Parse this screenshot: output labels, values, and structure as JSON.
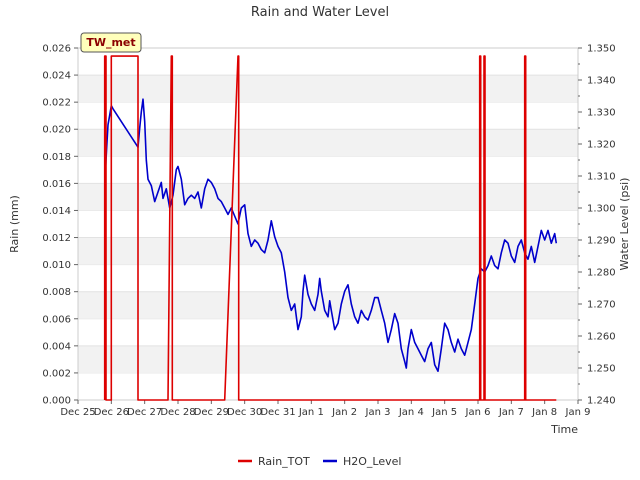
{
  "chart_data": {
    "type": "line",
    "title": "Rain and Water Level",
    "badge": "TW_met",
    "xlabel": "Time",
    "ylabel_left": "Rain (mm)",
    "ylabel_right": "Water Level (psi)",
    "xlim": [
      0,
      15
    ],
    "x_ticks": [
      {
        "x": 0,
        "label": "Dec 25"
      },
      {
        "x": 1,
        "label": "Dec 26"
      },
      {
        "x": 2,
        "label": "Dec 27"
      },
      {
        "x": 3,
        "label": "Dec 28"
      },
      {
        "x": 4,
        "label": "Dec 29"
      },
      {
        "x": 5,
        "label": "Dec 30"
      },
      {
        "x": 6,
        "label": "Dec 31"
      },
      {
        "x": 7,
        "label": "Jan 1"
      },
      {
        "x": 8,
        "label": "Jan 2"
      },
      {
        "x": 9,
        "label": "Jan 3"
      },
      {
        "x": 10,
        "label": "Jan 4"
      },
      {
        "x": 11,
        "label": "Jan 5"
      },
      {
        "x": 12,
        "label": "Jan 6"
      },
      {
        "x": 13,
        "label": "Jan 7"
      },
      {
        "x": 14,
        "label": "Jan 8"
      },
      {
        "x": 15,
        "label": "Jan 9"
      }
    ],
    "ylim_left": [
      0,
      0.026
    ],
    "y_ticks_left": [
      "0.000",
      "0.002",
      "0.004",
      "0.006",
      "0.008",
      "0.010",
      "0.012",
      "0.014",
      "0.016",
      "0.018",
      "0.020",
      "0.022",
      "0.024",
      "0.026"
    ],
    "ylim_right": [
      1.24,
      1.35
    ],
    "y_ticks_right": [
      "1.240",
      "1.250",
      "1.260",
      "1.270",
      "1.280",
      "1.290",
      "1.300",
      "1.310",
      "1.320",
      "1.330",
      "1.340",
      "1.350"
    ],
    "grid": "horizontal bands",
    "legend_position": "bottom",
    "series": [
      {
        "name": "Rain_TOT",
        "color": "#dd0000",
        "axis": "left",
        "points": [
          [
            0.8,
            0
          ],
          [
            0.8,
            0.0254
          ],
          [
            0.84,
            0.0254
          ],
          [
            0.84,
            0
          ],
          [
            1.0,
            0
          ],
          [
            1.0,
            0.0254
          ],
          [
            1.8,
            0.0254
          ],
          [
            1.8,
            0
          ],
          [
            2.7,
            0
          ],
          [
            2.8,
            0.0254
          ],
          [
            2.83,
            0.0254
          ],
          [
            2.83,
            0
          ],
          [
            4.4,
            0
          ],
          [
            4.8,
            0.0254
          ],
          [
            4.82,
            0.0254
          ],
          [
            4.82,
            0
          ],
          [
            12.05,
            0
          ],
          [
            12.05,
            0.0254
          ],
          [
            12.08,
            0.0254
          ],
          [
            12.08,
            0
          ],
          [
            12.18,
            0
          ],
          [
            12.18,
            0.0254
          ],
          [
            12.21,
            0.0254
          ],
          [
            12.21,
            0
          ],
          [
            13.4,
            0
          ],
          [
            13.4,
            0.0254
          ],
          [
            13.43,
            0.0254
          ],
          [
            13.43,
            0
          ],
          [
            14.35,
            0
          ]
        ]
      },
      {
        "name": "H2O_Level",
        "color": "#0000cc",
        "axis": "right",
        "points": [
          [
            0.82,
            1.311
          ],
          [
            0.86,
            1.319
          ],
          [
            0.9,
            1.326
          ],
          [
            0.95,
            1.329
          ],
          [
            1.0,
            1.332
          ],
          [
            1.05,
            1.331
          ],
          [
            1.8,
            1.319
          ],
          [
            1.85,
            1.325
          ],
          [
            1.9,
            1.33
          ],
          [
            1.95,
            1.334
          ],
          [
            2.0,
            1.327
          ],
          [
            2.05,
            1.315
          ],
          [
            2.1,
            1.309
          ],
          [
            2.2,
            1.307
          ],
          [
            2.3,
            1.302
          ],
          [
            2.4,
            1.305
          ],
          [
            2.5,
            1.308
          ],
          [
            2.55,
            1.303
          ],
          [
            2.65,
            1.306
          ],
          [
            2.75,
            1.3
          ],
          [
            2.85,
            1.304
          ],
          [
            2.95,
            1.312
          ],
          [
            3.0,
            1.313
          ],
          [
            3.1,
            1.309
          ],
          [
            3.2,
            1.301
          ],
          [
            3.3,
            1.303
          ],
          [
            3.4,
            1.304
          ],
          [
            3.5,
            1.303
          ],
          [
            3.6,
            1.305
          ],
          [
            3.7,
            1.3
          ],
          [
            3.8,
            1.306
          ],
          [
            3.9,
            1.309
          ],
          [
            4.0,
            1.308
          ],
          [
            4.1,
            1.306
          ],
          [
            4.2,
            1.303
          ],
          [
            4.3,
            1.302
          ],
          [
            4.4,
            1.3
          ],
          [
            4.5,
            1.298
          ],
          [
            4.6,
            1.3
          ],
          [
            4.8,
            1.295
          ],
          [
            4.9,
            1.3
          ],
          [
            5.0,
            1.301
          ],
          [
            5.1,
            1.292
          ],
          [
            5.2,
            1.288
          ],
          [
            5.3,
            1.29
          ],
          [
            5.4,
            1.289
          ],
          [
            5.5,
            1.287
          ],
          [
            5.6,
            1.286
          ],
          [
            5.7,
            1.29
          ],
          [
            5.8,
            1.296
          ],
          [
            5.9,
            1.291
          ],
          [
            6.0,
            1.288
          ],
          [
            6.1,
            1.286
          ],
          [
            6.2,
            1.28
          ],
          [
            6.3,
            1.272
          ],
          [
            6.4,
            1.268
          ],
          [
            6.5,
            1.27
          ],
          [
            6.6,
            1.262
          ],
          [
            6.7,
            1.266
          ],
          [
            6.75,
            1.274
          ],
          [
            6.8,
            1.279
          ],
          [
            6.9,
            1.273
          ],
          [
            7.0,
            1.27
          ],
          [
            7.1,
            1.268
          ],
          [
            7.2,
            1.273
          ],
          [
            7.25,
            1.278
          ],
          [
            7.3,
            1.274
          ],
          [
            7.4,
            1.268
          ],
          [
            7.5,
            1.266
          ],
          [
            7.55,
            1.271
          ],
          [
            7.6,
            1.268
          ],
          [
            7.7,
            1.262
          ],
          [
            7.8,
            1.264
          ],
          [
            7.9,
            1.27
          ],
          [
            8.0,
            1.274
          ],
          [
            8.1,
            1.276
          ],
          [
            8.2,
            1.27
          ],
          [
            8.3,
            1.266
          ],
          [
            8.4,
            1.264
          ],
          [
            8.5,
            1.268
          ],
          [
            8.6,
            1.266
          ],
          [
            8.7,
            1.265
          ],
          [
            8.8,
            1.268
          ],
          [
            8.9,
            1.272
          ],
          [
            9.0,
            1.272
          ],
          [
            9.1,
            1.268
          ],
          [
            9.2,
            1.264
          ],
          [
            9.3,
            1.258
          ],
          [
            9.4,
            1.262
          ],
          [
            9.5,
            1.267
          ],
          [
            9.6,
            1.264
          ],
          [
            9.7,
            1.256
          ],
          [
            9.8,
            1.252
          ],
          [
            9.85,
            1.25
          ],
          [
            9.9,
            1.256
          ],
          [
            10.0,
            1.262
          ],
          [
            10.1,
            1.258
          ],
          [
            10.2,
            1.256
          ],
          [
            10.3,
            1.254
          ],
          [
            10.4,
            1.252
          ],
          [
            10.5,
            1.256
          ],
          [
            10.6,
            1.258
          ],
          [
            10.7,
            1.251
          ],
          [
            10.8,
            1.249
          ],
          [
            10.9,
            1.256
          ],
          [
            11.0,
            1.264
          ],
          [
            11.1,
            1.262
          ],
          [
            11.2,
            1.258
          ],
          [
            11.3,
            1.255
          ],
          [
            11.4,
            1.259
          ],
          [
            11.5,
            1.256
          ],
          [
            11.6,
            1.254
          ],
          [
            11.7,
            1.258
          ],
          [
            11.8,
            1.262
          ],
          [
            11.9,
            1.27
          ],
          [
            12.0,
            1.278
          ],
          [
            12.1,
            1.281
          ],
          [
            12.2,
            1.28
          ],
          [
            12.3,
            1.282
          ],
          [
            12.4,
            1.285
          ],
          [
            12.5,
            1.282
          ],
          [
            12.6,
            1.281
          ],
          [
            12.7,
            1.286
          ],
          [
            12.8,
            1.29
          ],
          [
            12.9,
            1.289
          ],
          [
            13.0,
            1.285
          ],
          [
            13.1,
            1.283
          ],
          [
            13.2,
            1.288
          ],
          [
            13.3,
            1.29
          ],
          [
            13.4,
            1.286
          ],
          [
            13.5,
            1.284
          ],
          [
            13.6,
            1.288
          ],
          [
            13.7,
            1.283
          ],
          [
            13.8,
            1.288
          ],
          [
            13.9,
            1.293
          ],
          [
            14.0,
            1.29
          ],
          [
            14.1,
            1.293
          ],
          [
            14.2,
            1.289
          ],
          [
            14.3,
            1.292
          ],
          [
            14.35,
            1.289
          ]
        ]
      }
    ]
  }
}
